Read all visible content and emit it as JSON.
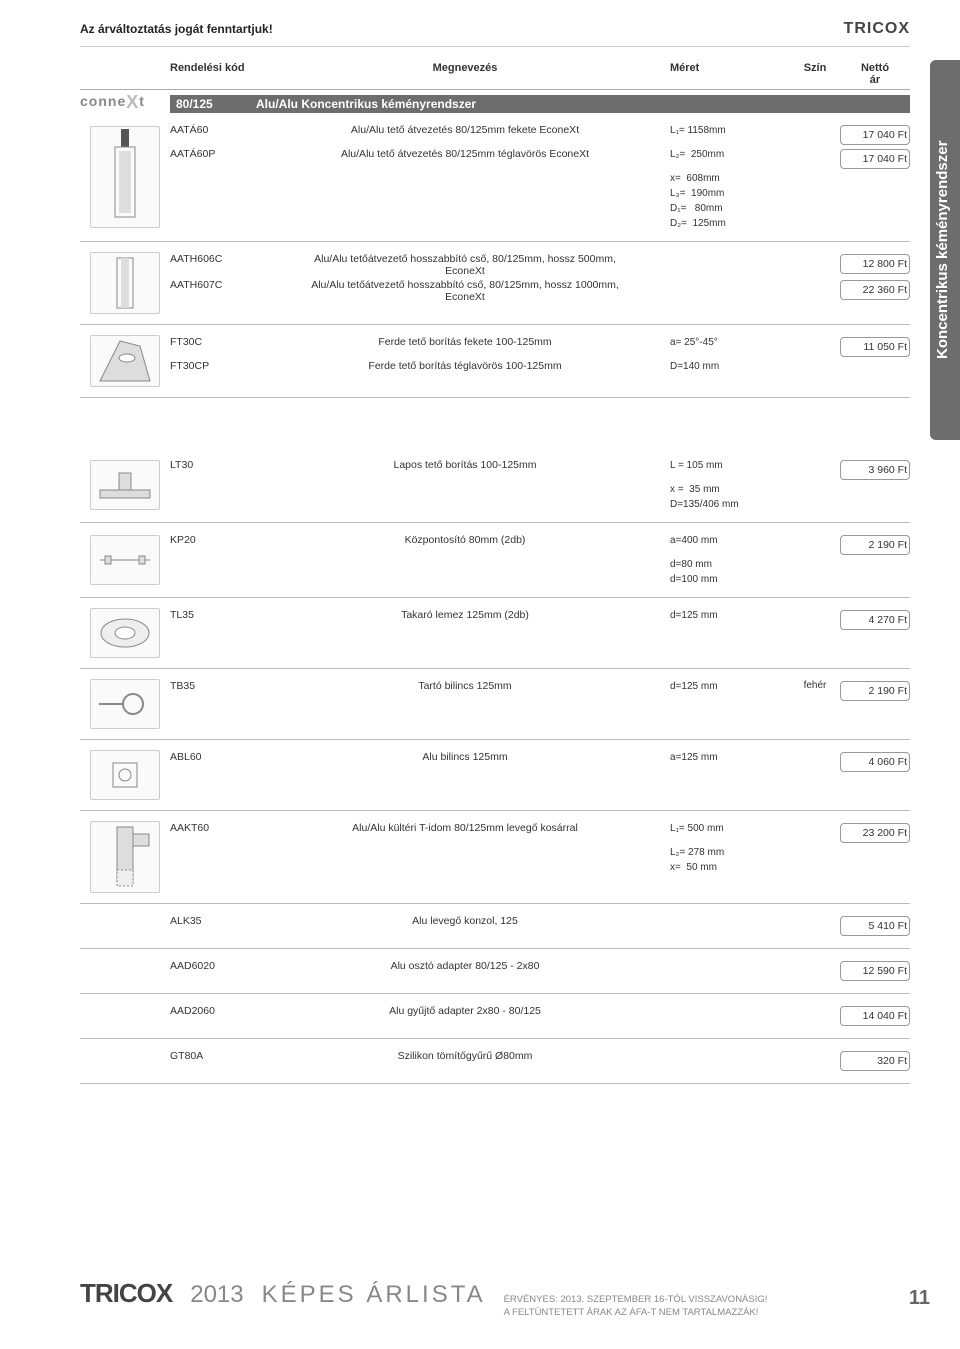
{
  "header": {
    "note": "Az árváltoztatás jogát fenntartjuk!",
    "brand": "TRICOX"
  },
  "side_tab": "Koncentrikus kéményrendszer",
  "columns": {
    "code": "Rendelési kód",
    "name": "Megnevezés",
    "size": "Méret",
    "color": "Szín",
    "price": "Nettó\nár"
  },
  "system_row": {
    "code": "80/125",
    "name": "Alu/Alu   Koncentrikus kéményrendszer"
  },
  "brand_logo": "conneXt",
  "blocks": [
    {
      "icon": "terminal",
      "rows": [
        {
          "code": "AATÁ60",
          "name": "Alu/Alu tető átvezetés 80/125mm fekete EconeXt",
          "size": "L₁= 1158mm",
          "color": "",
          "price": "17 040 Ft"
        },
        {
          "code": "AATÁ60P",
          "name": "Alu/Alu tető átvezetés 80/125mm téglavörös EconeXt",
          "size": "L₂=  250mm",
          "color": "",
          "price": "17 040 Ft"
        },
        {
          "code": "",
          "name": "",
          "size": "x=  608mm",
          "color": "",
          "price": ""
        },
        {
          "code": "",
          "name": "",
          "size": "L₃=  190mm",
          "color": "",
          "price": ""
        },
        {
          "code": "",
          "name": "",
          "size": "D₁=   80mm",
          "color": "",
          "price": ""
        },
        {
          "code": "",
          "name": "",
          "size": "D₂=  125mm",
          "color": "",
          "price": ""
        }
      ]
    },
    {
      "icon": "pipe",
      "rows": [
        {
          "code": "AATH606C",
          "name": "Alu/Alu tetőátvezető hosszabbító cső, 80/125mm, hossz 500mm,\nEconeXt",
          "size": "",
          "color": "",
          "price": "12 800 Ft"
        },
        {
          "code": "AATH607C",
          "name": "Alu/Alu tetőátvezető hosszabbító cső, 80/125mm, hossz 1000mm,\nEconeXt",
          "size": "",
          "color": "",
          "price": "22 360 Ft"
        }
      ]
    },
    {
      "icon": "flash",
      "rows": [
        {
          "code": "FT30C",
          "name": "Ferde tető borítás fekete 100-125mm",
          "size": "a= 25°-45°",
          "color": "",
          "price": "11 050 Ft"
        },
        {
          "code": "FT30CP",
          "name": "Ferde tető borítás téglavörös 100-125mm",
          "size": "D=140 mm",
          "color": "",
          "price": ""
        }
      ]
    },
    {
      "icon": "flat",
      "rows": [
        {
          "code": "LT30",
          "name": "Lapos tető borítás 100-125mm",
          "size": "L = 105 mm",
          "color": "",
          "price": "3 960 Ft"
        },
        {
          "code": "",
          "name": "",
          "size": "x =  35 mm",
          "color": "",
          "price": ""
        },
        {
          "code": "",
          "name": "",
          "size": "D=135/406 mm",
          "color": "",
          "price": ""
        }
      ]
    },
    {
      "icon": "centre",
      "rows": [
        {
          "code": "KP20",
          "name": "Központosító 80mm (2db)",
          "size": "a=400 mm",
          "color": "",
          "price": "2 190 Ft"
        },
        {
          "code": "",
          "name": "",
          "size": "d=80 mm",
          "color": "",
          "price": ""
        },
        {
          "code": "",
          "name": "",
          "size": "d=100 mm",
          "color": "",
          "price": ""
        }
      ]
    },
    {
      "icon": "plate",
      "rows": [
        {
          "code": "TL35",
          "name": "Takaró lemez 125mm (2db)",
          "size": "d=125 mm",
          "color": "",
          "price": "4 270 Ft"
        }
      ]
    },
    {
      "icon": "clamp",
      "rows": [
        {
          "code": "TB35",
          "name": "Tartó bilincs 125mm",
          "size": "d=125 mm",
          "color": "fehér",
          "price": "2 190 Ft"
        }
      ]
    },
    {
      "icon": "clip",
      "rows": [
        {
          "code": "ABL60",
          "name": "Alu bilincs 125mm",
          "size": "a=125 mm",
          "color": "",
          "price": "4 060 Ft"
        }
      ]
    },
    {
      "icon": "tidom",
      "rows": [
        {
          "code": "AAKT60",
          "name": "Alu/Alu kültéri T-idom 80/125mm levegő kosárral",
          "size": "L₁= 500 mm",
          "color": "",
          "price": "23 200 Ft"
        },
        {
          "code": "",
          "name": "",
          "size": "L₂= 278 mm",
          "color": "",
          "price": ""
        },
        {
          "code": "",
          "name": "",
          "size": "x=  50 mm",
          "color": "",
          "price": ""
        }
      ]
    },
    {
      "icon": "none",
      "rows": [
        {
          "code": "ALK35",
          "name": "Alu levegő konzol, 125",
          "size": "",
          "color": "",
          "price": "5 410 Ft"
        }
      ]
    },
    {
      "icon": "none",
      "rows": [
        {
          "code": "AAD6020",
          "name": "Alu osztó adapter 80/125 - 2x80",
          "size": "",
          "color": "",
          "price": "12 590 Ft"
        }
      ]
    },
    {
      "icon": "none",
      "rows": [
        {
          "code": "AAD2060",
          "name": "Alu gyűjtő adapter 2x80 - 80/125",
          "size": "",
          "color": "",
          "price": "14 040 Ft"
        }
      ]
    },
    {
      "icon": "none",
      "rows": [
        {
          "code": "GT80A",
          "name": "Szilikon tömítőgyűrű Ø80mm",
          "size": "",
          "color": "",
          "price": "320 Ft"
        }
      ]
    }
  ],
  "footer": {
    "brand": "TRICOX",
    "year": "2013",
    "title": "KÉPES ÁRLISTA",
    "note1": "ÉRVÉNYES: 2013. SZEPTEMBER 16-TÓL VISSZAVONÁSIG!",
    "note2": "A FELTÜNTETETT ÁRAK AZ ÁFA-T NEM TARTALMAZZÁK!",
    "page": "11"
  },
  "style": {
    "page_bg": "#ffffff",
    "tab_bg": "#6d6d6d",
    "tab_text": "#ffffff",
    "rule_color": "#bbbbbb",
    "text_color": "#333333",
    "brand_color": "#444444",
    "footer_muted": "#888888"
  }
}
